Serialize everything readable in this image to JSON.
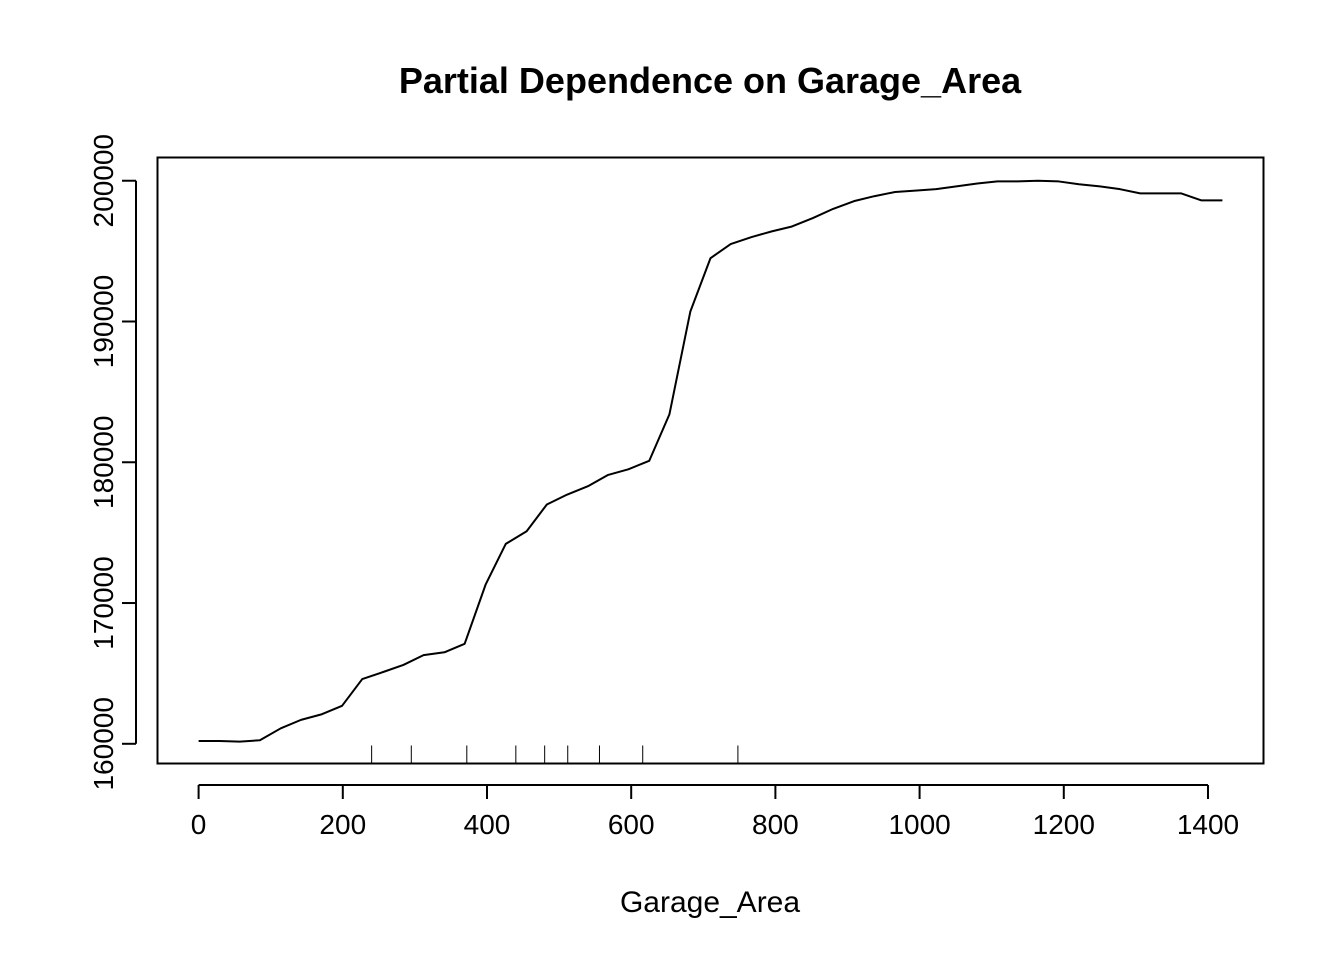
{
  "chart_data": {
    "type": "line",
    "title": "Partial Dependence on Garage_Area",
    "xlabel": "Garage_Area",
    "ylabel": "",
    "xlim": [
      -57,
      1477
    ],
    "ylim": [
      158600,
      201650
    ],
    "x_ticks": [
      0,
      200,
      400,
      600,
      800,
      1000,
      1200,
      1400
    ],
    "y_ticks": [
      160000,
      170000,
      180000,
      190000,
      200000
    ],
    "x_tick_labels": [
      "0",
      "200",
      "400",
      "600",
      "800",
      "1000",
      "1200",
      "1400"
    ],
    "y_tick_labels": [
      "160000",
      "170000",
      "180000",
      "190000",
      "200000"
    ],
    "grid": false,
    "series": [
      {
        "x": [
          0,
          29,
          57,
          85,
          114,
          142,
          171,
          199,
          227,
          256,
          284,
          312,
          341,
          369,
          398,
          426,
          455,
          483,
          511,
          540,
          568,
          596,
          625,
          653,
          682,
          710,
          738,
          767,
          795,
          823,
          852,
          880,
          909,
          937,
          966,
          994,
          1023,
          1051,
          1080,
          1108,
          1136,
          1164,
          1193,
          1221,
          1250,
          1278,
          1306,
          1335,
          1363,
          1391,
          1420
        ],
        "y": [
          160200,
          160200,
          160150,
          160250,
          161100,
          161700,
          162100,
          162700,
          164600,
          165100,
          165600,
          166300,
          166500,
          167100,
          171300,
          174200,
          175100,
          177000,
          177700,
          178300,
          179100,
          179500,
          180100,
          183400,
          190700,
          194500,
          195500,
          196000,
          196400,
          196750,
          197350,
          198000,
          198550,
          198900,
          199200,
          199300,
          199400,
          199600,
          199800,
          199950,
          199950,
          200000,
          199950,
          199750,
          199600,
          199400,
          199100,
          199100,
          199100,
          198600,
          198600
        ]
      }
    ],
    "rug": [
      240,
      295,
      372,
      440,
      480,
      512,
      556,
      616,
      748
    ]
  }
}
